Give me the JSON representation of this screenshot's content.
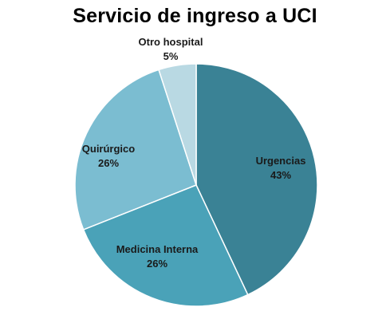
{
  "chart_data": {
    "type": "pie",
    "title": "Servicio de ingreso a UCI",
    "slices": [
      {
        "label": "Urgencias",
        "percent_label": "43%",
        "value": 43,
        "color": "#3a8295"
      },
      {
        "label": "Medicina Interna",
        "percent_label": "26%",
        "value": 26,
        "color": "#4aa2b8"
      },
      {
        "label": "Quirúrgico",
        "percent_label": "26%",
        "value": 26,
        "color": "#7bbdd1"
      },
      {
        "label": "Otro hospital",
        "percent_label": "5%",
        "value": 5,
        "color": "#b9d9e3"
      }
    ],
    "start_angle_deg": 0,
    "direction": "clockwise",
    "legend": "none",
    "slice_border_color": "#ffffff"
  }
}
